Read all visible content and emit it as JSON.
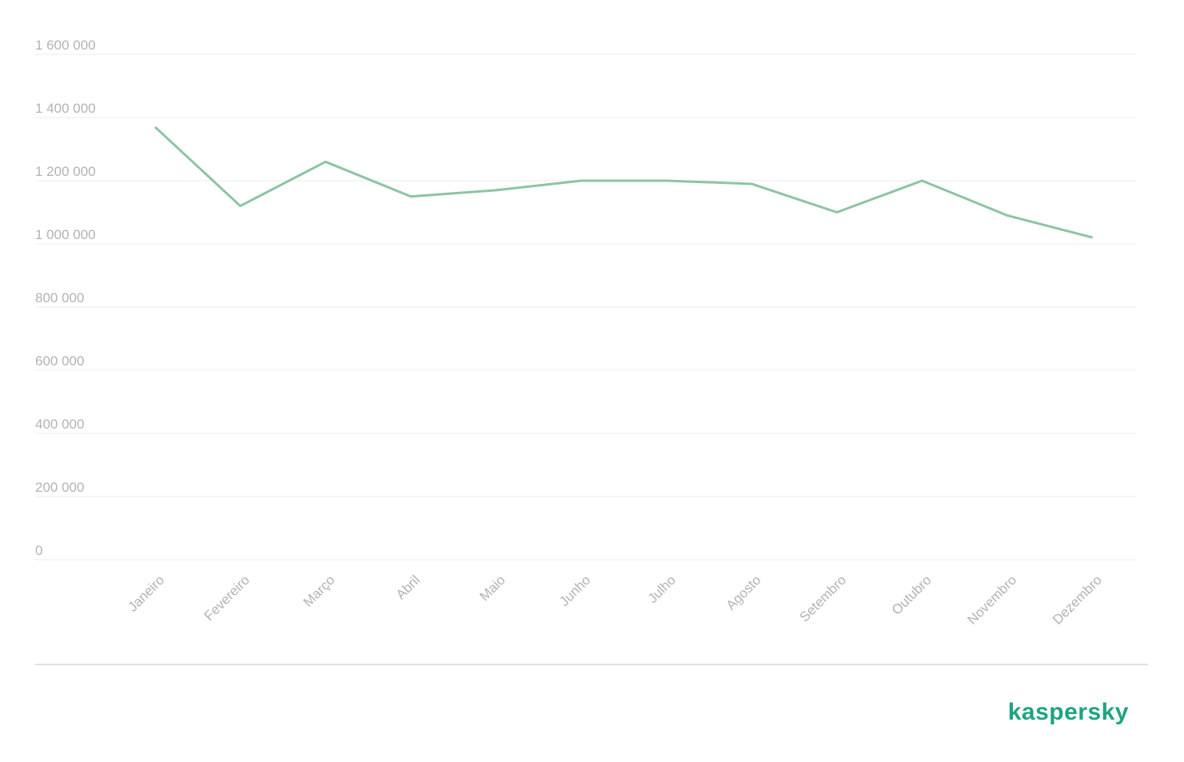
{
  "chart_data": {
    "type": "line",
    "categories": [
      "Janeiro",
      "Fevereiro",
      "Março",
      "Abril",
      "Maio",
      "Junho",
      "Julho",
      "Agosto",
      "Setembro",
      "Outubro",
      "Novembro",
      "Dezembro"
    ],
    "values": [
      1370000,
      1120000,
      1260000,
      1150000,
      1170000,
      1200000,
      1200000,
      1190000,
      1100000,
      1200000,
      1090000,
      1020000
    ],
    "color": "#8cc5a4",
    "ylim": [
      0,
      1600000
    ],
    "yticks": [
      0,
      {
        "value": 200000,
        "label": "200 000"
      },
      {
        "value": 400000,
        "label": "400 000"
      },
      {
        "value": 600000,
        "label": "600 000"
      },
      {
        "value": 800000,
        "label": "800 000"
      },
      {
        "value": 1000000,
        "label": "1 000 000"
      },
      {
        "value": 1200000,
        "label": "1 200 000"
      },
      {
        "value": 1400000,
        "label": "1 400 000"
      },
      {
        "value": 1600000,
        "label": "1 600 000"
      }
    ],
    "grid": true
  },
  "brand": "kaspersky"
}
